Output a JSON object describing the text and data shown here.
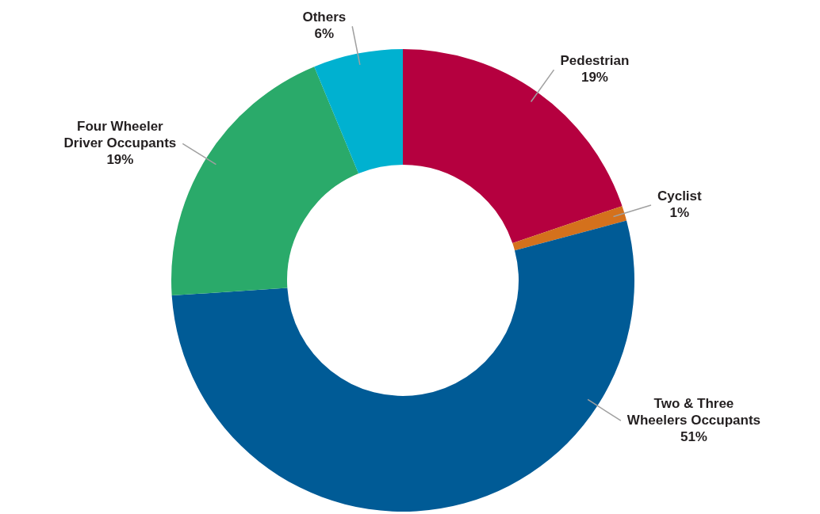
{
  "chart_data": {
    "type": "donut",
    "categories": [
      "Pedestrian",
      "Cyclist",
      "Two & Three Wheelers Occupants",
      "Four Wheeler Driver Occupants",
      "Others"
    ],
    "values": [
      19,
      1,
      51,
      19,
      6
    ],
    "value_labels": [
      "19%",
      "1%",
      "51%",
      "19%",
      "6%"
    ],
    "colors": [
      "#b5003f",
      "#d4711c",
      "#005b96",
      "#2aaa6a",
      "#00b1d0"
    ],
    "legend": false
  }
}
